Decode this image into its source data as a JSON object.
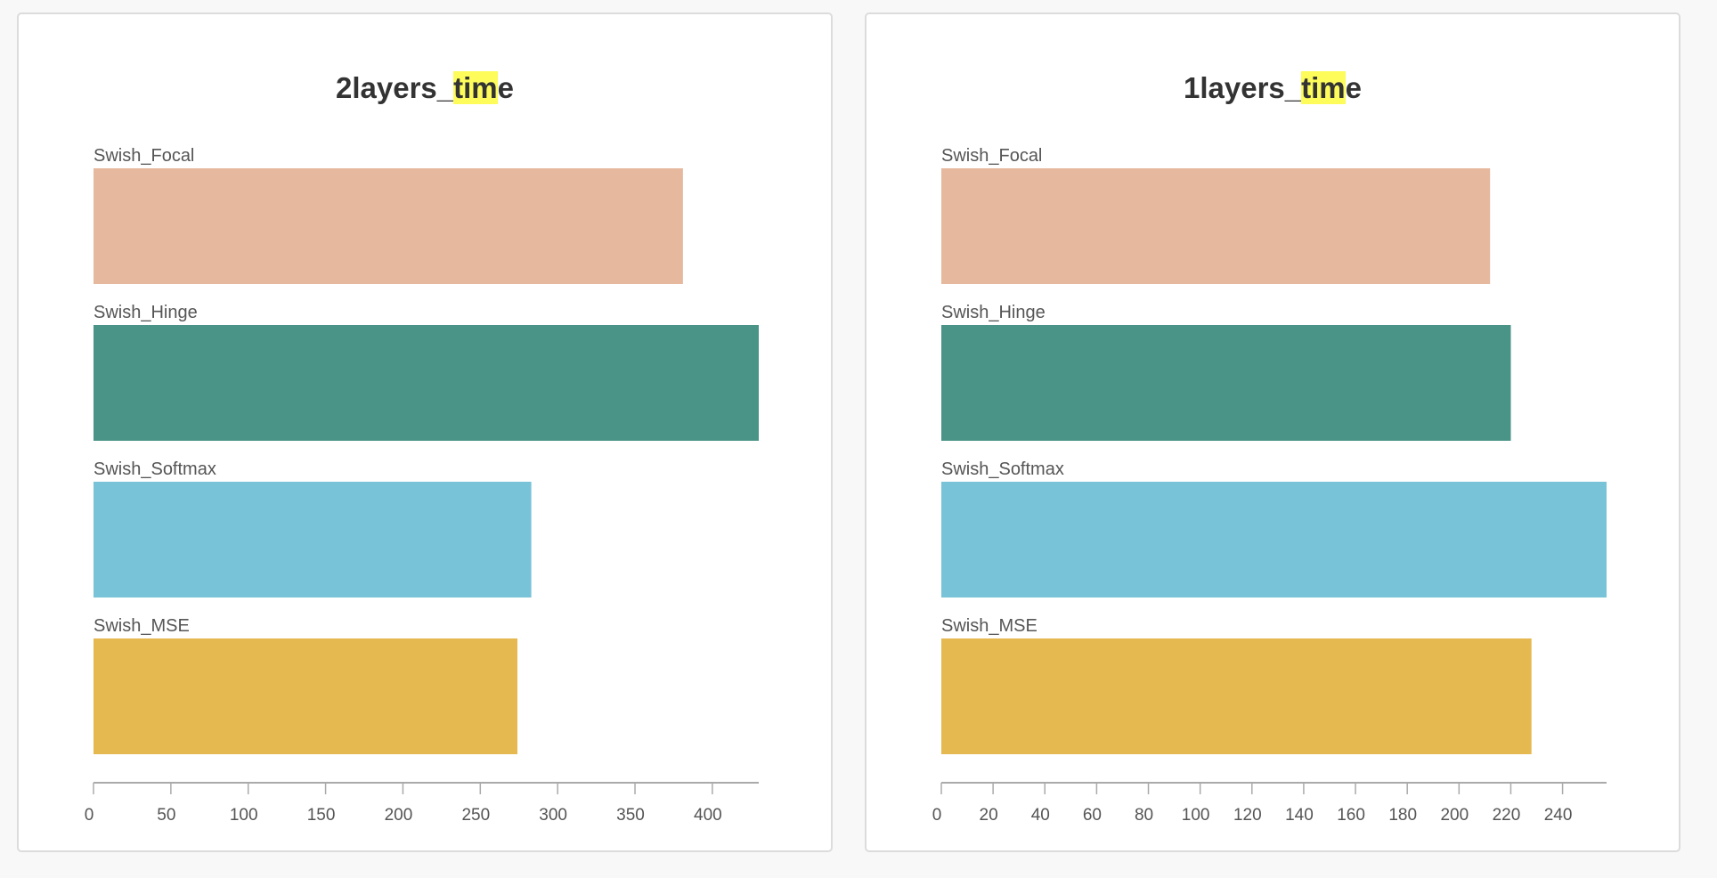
{
  "chart_data": [
    {
      "type": "bar",
      "orientation": "horizontal",
      "title_parts": [
        "2layers_",
        "tim",
        "e"
      ],
      "categories": [
        "Swish_Focal",
        "Swish_Hinge",
        "Swish_Softmax",
        "Swish_MSE"
      ],
      "values": [
        381,
        430,
        283,
        274
      ],
      "colors": [
        "#e6b99e",
        "#4a9387",
        "#78c3d7",
        "#e6b850"
      ],
      "xlim": [
        0,
        430
      ],
      "xticks": [
        "0",
        "50",
        "100",
        "150",
        "200",
        "250",
        "300",
        "350",
        "400"
      ],
      "grid": false
    },
    {
      "type": "bar",
      "orientation": "horizontal",
      "title_parts": [
        "1layers_",
        "tim",
        "e"
      ],
      "categories": [
        "Swish_Focal",
        "Swish_Hinge",
        "Swish_Softmax",
        "Swish_MSE"
      ],
      "values": [
        212,
        220,
        257,
        228
      ],
      "colors": [
        "#e6b99e",
        "#4a9387",
        "#78c3d7",
        "#e6b850"
      ],
      "xlim": [
        0,
        257
      ],
      "xticks": [
        "0",
        "20",
        "40",
        "60",
        "80",
        "100",
        "120",
        "140",
        "160",
        "180",
        "200",
        "220",
        "240"
      ],
      "grid": false
    }
  ],
  "title_highlight_color": "#fdfc5b"
}
